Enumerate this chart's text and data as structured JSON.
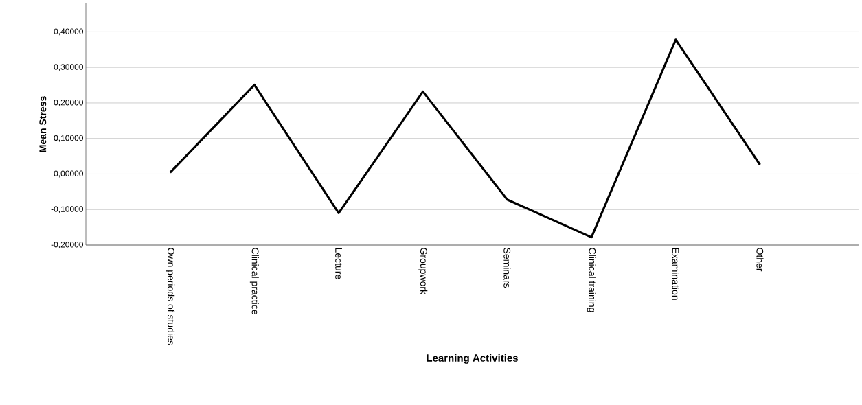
{
  "chart_data": {
    "type": "line",
    "xlabel": "Learning Activities",
    "ylabel": "Mean Stress",
    "categories": [
      "Own periods of studies",
      "Clinical practice",
      "Lecture",
      "Groupwork",
      "Seminars",
      "Clinical training",
      "Examination",
      "Other"
    ],
    "values": [
      0.004,
      0.251,
      -0.11,
      0.232,
      -0.072,
      -0.178,
      0.378,
      0.026
    ],
    "color": "#000000",
    "ylim": [
      -0.2,
      0.48
    ],
    "yticks": [
      {
        "value": -0.2,
        "label": "-0,20000"
      },
      {
        "value": -0.1,
        "label": "-0,10000"
      },
      {
        "value": 0,
        "label": "0,00000"
      },
      {
        "value": 0.1,
        "label": "0,10000"
      },
      {
        "value": 0.2,
        "label": "0,20000"
      },
      {
        "value": 0.3,
        "label": "0,30000"
      },
      {
        "value": 0.4,
        "label": "0,40000"
      }
    ],
    "grid": "y",
    "marker": "none",
    "line_style": "solid"
  }
}
